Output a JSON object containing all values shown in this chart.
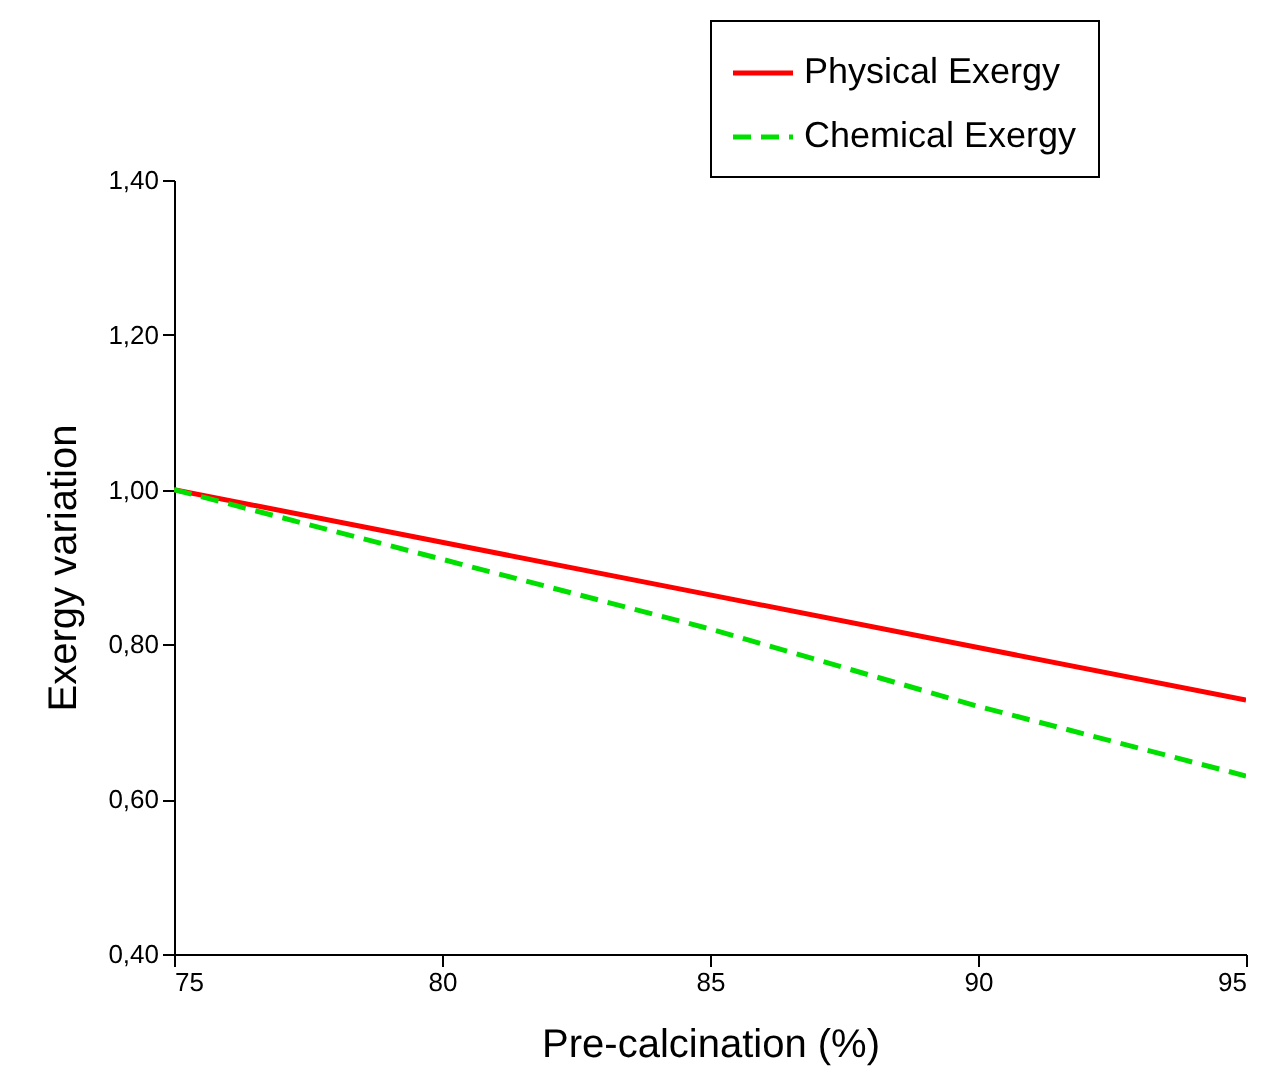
{
  "chart_data": {
    "type": "line",
    "xlabel": "Pre-calcination (%)",
    "ylabel": "Exergy variation",
    "x": [
      75,
      80,
      85,
      90,
      95
    ],
    "series": [
      {
        "name": "Physical Exergy",
        "color": "#ff0000",
        "line_style": "solid",
        "values": [
          1.0,
          0.932,
          0.864,
          0.796,
          0.728
        ]
      },
      {
        "name": "Chemical Exergy",
        "color": "#00e000",
        "line_style": "dashed",
        "values": [
          1.0,
          0.91,
          0.82,
          0.72,
          0.63
        ]
      }
    ],
    "xlim": [
      75,
      95
    ],
    "xticks": [
      75,
      80,
      85,
      90,
      95
    ],
    "ylim": [
      0.4,
      1.4
    ],
    "yticks": [
      {
        "value": 0.4,
        "label": "0,40"
      },
      {
        "value": 0.6,
        "label": "0,60"
      },
      {
        "value": 0.8,
        "label": "0,80"
      },
      {
        "value": 1.0,
        "label": "1,00"
      },
      {
        "value": 1.2,
        "label": "1,20"
      },
      {
        "value": 1.4,
        "label": "1,40"
      }
    ],
    "grid": false,
    "legend": "top right",
    "marker": "none"
  }
}
